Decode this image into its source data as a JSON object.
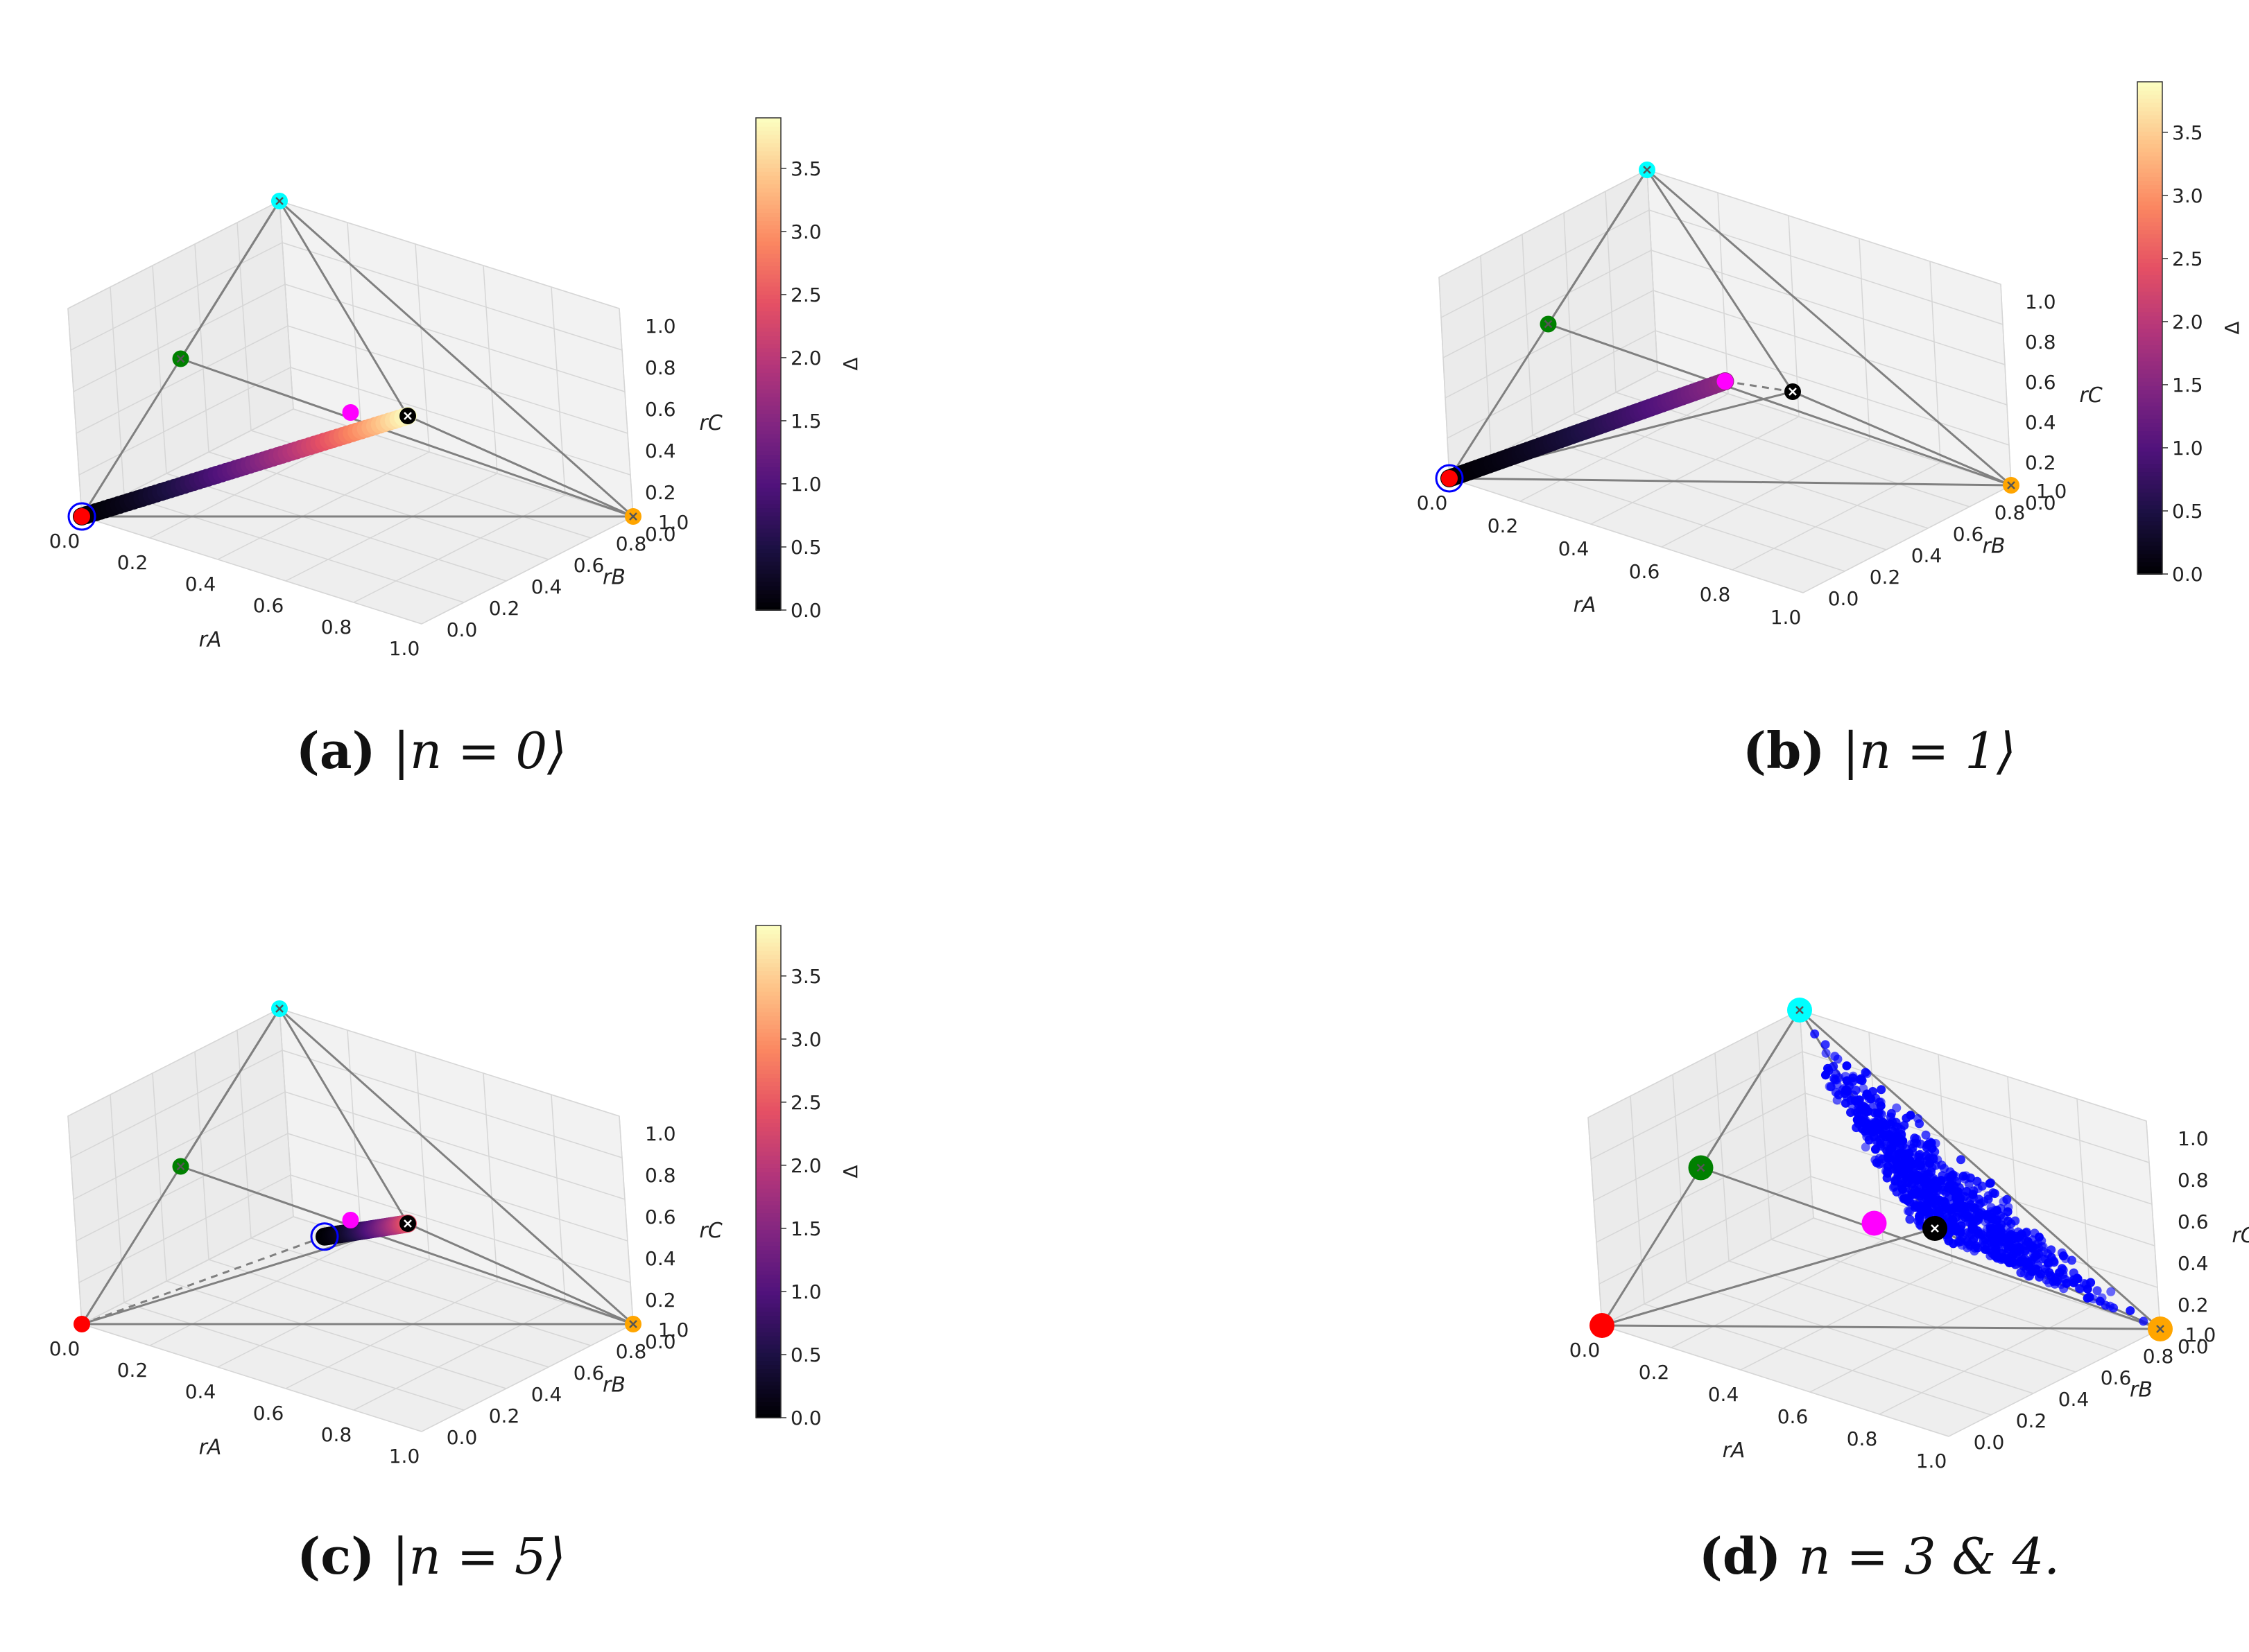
{
  "colors": {
    "vertex_red": "#ff0000",
    "vertex_cyan": "#00ffff",
    "vertex_green": "#008000",
    "vertex_orange": "#ffa500",
    "vertex_black": "#000000",
    "vertex_magenta": "#ff00ff",
    "state_ring": "#0000ff",
    "scatter_blue": "#0000ff",
    "edge": "#808080",
    "pane": "#f2f2f2",
    "grid": "#d6d6d6"
  },
  "colormap": "magma",
  "axes": {
    "xlabel": "r_A",
    "ylabel": "r_B",
    "zlabel": "r_C",
    "ticks": [
      "0.0",
      "0.2",
      "0.4",
      "0.6",
      "0.8",
      "1.0"
    ]
  },
  "colorbar": {
    "label": "Δ",
    "range": [
      0,
      3.9
    ],
    "ticks": [
      "0.0",
      "0.5",
      "1.0",
      "1.5",
      "2.0",
      "2.5",
      "3.0",
      "3.5"
    ]
  },
  "chart_data": [
    {
      "type": "scatter",
      "panel": "a",
      "caption_tag": "(a)",
      "caption_expr": "|n = 0⟩",
      "vertices": [
        {
          "name": "red",
          "coord": [
            0,
            0,
            0
          ]
        },
        {
          "name": "cyan",
          "coord": [
            0,
            1,
            1
          ]
        },
        {
          "name": "orange",
          "coord": [
            1,
            1,
            0
          ]
        },
        {
          "name": "black",
          "coord": [
            1,
            0,
            1
          ]
        },
        {
          "name": "green",
          "coord": [
            0,
            0.5,
            0.5
          ]
        },
        {
          "name": "magenta",
          "coord": [
            0.5,
            0.5,
            0.5
          ]
        }
      ],
      "path": {
        "from": [
          0,
          0,
          0
        ],
        "to": [
          1,
          0,
          1
        ],
        "delta_range": [
          0,
          3.9
        ]
      },
      "state_ring": [
        0,
        0,
        0
      ],
      "colorbar": true
    },
    {
      "type": "scatter",
      "panel": "b",
      "caption_tag": "(b)",
      "caption_expr": "|n = 1⟩",
      "vertices": [
        {
          "name": "red",
          "coord": [
            0,
            0,
            0
          ]
        },
        {
          "name": "cyan",
          "coord": [
            0,
            1,
            1
          ]
        },
        {
          "name": "orange",
          "coord": [
            1,
            1,
            0
          ]
        },
        {
          "name": "black",
          "coord": [
            1,
            0,
            1
          ]
        },
        {
          "name": "green",
          "coord": [
            0,
            0.5,
            0.5
          ]
        },
        {
          "name": "magenta",
          "coord": [
            0.5,
            0.5,
            0.5
          ]
        }
      ],
      "path": {
        "from": [
          0,
          0,
          0
        ],
        "to": [
          0.5,
          0.5,
          0.5
        ],
        "delta_range": [
          0,
          1.6
        ]
      },
      "dashed": [
        [
          0.5,
          0.5,
          0.5
        ],
        [
          1,
          0,
          1
        ]
      ],
      "state_ring": [
        0,
        0,
        0
      ],
      "colorbar": true
    },
    {
      "type": "scatter",
      "panel": "c",
      "caption_tag": "(c)",
      "caption_expr": "|n = 5⟩",
      "vertices": [
        {
          "name": "red",
          "coord": [
            0,
            0,
            0
          ]
        },
        {
          "name": "cyan",
          "coord": [
            0,
            1,
            1
          ]
        },
        {
          "name": "orange",
          "coord": [
            1,
            1,
            0
          ]
        },
        {
          "name": "black",
          "coord": [
            1,
            0,
            1
          ]
        },
        {
          "name": "green",
          "coord": [
            0,
            0.5,
            0.5
          ]
        },
        {
          "name": "magenta",
          "coord": [
            0.5,
            0.5,
            0.5
          ]
        }
      ],
      "path": {
        "from": [
          0.55,
          0.3,
          0.55
        ],
        "to": [
          1,
          0,
          1
        ],
        "delta_range": [
          0,
          2.4
        ]
      },
      "dashed": [
        [
          0,
          0,
          0
        ],
        [
          0.55,
          0.3,
          0.55
        ]
      ],
      "state_ring": [
        0.55,
        0.3,
        0.55
      ],
      "colorbar": true
    },
    {
      "type": "scatter",
      "panel": "d",
      "caption_tag": "(d)",
      "caption_expr": "n = 3 & 4.",
      "vertices": [
        {
          "name": "red",
          "coord": [
            0,
            0,
            0
          ]
        },
        {
          "name": "cyan",
          "coord": [
            0,
            1,
            1
          ]
        },
        {
          "name": "orange",
          "coord": [
            1,
            1,
            0
          ]
        },
        {
          "name": "black",
          "coord": [
            1,
            0,
            1
          ]
        },
        {
          "name": "green",
          "coord": [
            0,
            0.5,
            0.5
          ]
        },
        {
          "name": "magenta",
          "coord": [
            0.5,
            0.5,
            0.5
          ]
        }
      ],
      "dashed": [
        [
          0,
          0,
          0
        ],
        [
          1,
          0,
          1
        ]
      ],
      "scatter_cloud": {
        "description_points": 900,
        "color": "#0000ff"
      },
      "colorbar": false
    }
  ],
  "captions": [
    {
      "tag": "(a)",
      "expr": "|n = 0⟩"
    },
    {
      "tag": "(b)",
      "expr": "|n = 1⟩"
    },
    {
      "tag": "(c)",
      "expr": "|n = 5⟩"
    },
    {
      "tag": "(d)",
      "expr": "n = 3 & 4."
    }
  ]
}
